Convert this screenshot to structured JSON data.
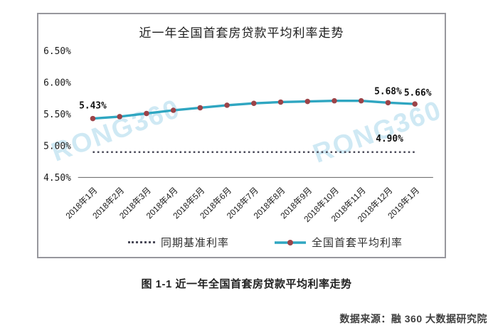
{
  "title": "近一年全国首套房贷款平均利率走势",
  "caption": "图 1-1 近一年全国首套房贷款平均利率走势",
  "source": "数据来源：融 360 大数据研究院",
  "watermark": "RONG360",
  "colors": {
    "line": "#2fa6c1",
    "marker": "#9c4348",
    "benchmark": "#4a4a58",
    "watermark": "#cfe9f4",
    "axis": "#4a4a4a",
    "border": "#97979d"
  },
  "legend": [
    {
      "label": "同期基准利率",
      "style": "dotted"
    },
    {
      "label": "全国首套平均利率",
      "style": "line-marker"
    }
  ],
  "chart_data": {
    "type": "line",
    "title": "近一年全国首套房贷款平均利率走势",
    "x": [
      "2018年1月",
      "2018年2月",
      "2018年3月",
      "2018年4月",
      "2018年5月",
      "2018年6月",
      "2018年7月",
      "2018年8月",
      "2018年9月",
      "2018年10月",
      "2018年11月",
      "2018年12月",
      "2019年1月"
    ],
    "series": [
      {
        "name": "全国首套平均利率",
        "style": "solid",
        "values": [
          5.43,
          5.46,
          5.51,
          5.56,
          5.6,
          5.64,
          5.67,
          5.69,
          5.7,
          5.71,
          5.71,
          5.68,
          5.66
        ]
      },
      {
        "name": "同期基准利率",
        "style": "dotted",
        "values": [
          4.9,
          4.9,
          4.9,
          4.9,
          4.9,
          4.9,
          4.9,
          4.9,
          4.9,
          4.9,
          4.9,
          4.9,
          4.9
        ]
      }
    ],
    "point_labels": [
      {
        "index": 0,
        "text": "5.43%"
      },
      {
        "index": 11,
        "text": "5.68%"
      },
      {
        "index": 12,
        "text": "5.66%"
      }
    ],
    "benchmark_label": "4.90%",
    "yticks": {
      "labels": [
        "6.50%",
        "6.00%",
        "5.50%",
        "5.00%",
        "4.50%"
      ],
      "values": [
        6.5,
        6.0,
        5.5,
        5.0,
        4.5
      ]
    },
    "ylim": [
      4.5,
      6.5
    ],
    "grid": false,
    "legend_position": "bottom"
  }
}
